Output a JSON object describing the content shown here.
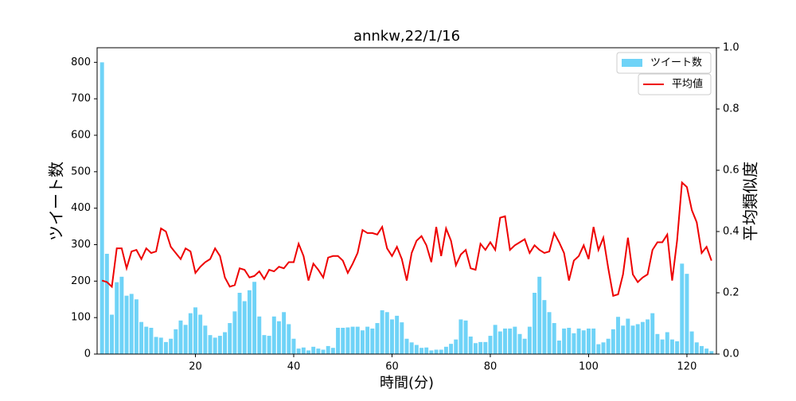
{
  "chart_data": {
    "type": "bar_line",
    "title": "annkw,22/1/16",
    "xlabel": "時間(分)",
    "ylabel": "ツイート数",
    "y2label": "平均類似度",
    "x": [
      1,
      2,
      3,
      4,
      5,
      6,
      7,
      8,
      9,
      10,
      11,
      12,
      13,
      14,
      15,
      16,
      17,
      18,
      19,
      20,
      21,
      22,
      23,
      24,
      25,
      26,
      27,
      28,
      29,
      30,
      31,
      32,
      33,
      34,
      35,
      36,
      37,
      38,
      39,
      40,
      41,
      42,
      43,
      44,
      45,
      46,
      47,
      48,
      49,
      50,
      51,
      52,
      53,
      54,
      55,
      56,
      57,
      58,
      59,
      60,
      61,
      62,
      63,
      64,
      65,
      66,
      67,
      68,
      69,
      70,
      71,
      72,
      73,
      74,
      75,
      76,
      77,
      78,
      79,
      80,
      81,
      82,
      83,
      84,
      85,
      86,
      87,
      88,
      89,
      90,
      91,
      92,
      93,
      94,
      95,
      96,
      97,
      98,
      99,
      100,
      101,
      102,
      103,
      104,
      105,
      106,
      107,
      108,
      109,
      110,
      111,
      112,
      113,
      114,
      115,
      116,
      117,
      118,
      119,
      120,
      121,
      122,
      123,
      124,
      125
    ],
    "series": [
      {
        "name": "ツイート数",
        "kind": "bar",
        "color": "#6fd3f7",
        "values": [
          800,
          275,
          108,
          197,
          212,
          160,
          165,
          150,
          88,
          75,
          72,
          47,
          45,
          33,
          42,
          68,
          92,
          80,
          112,
          128,
          108,
          78,
          52,
          45,
          50,
          60,
          85,
          117,
          168,
          145,
          175,
          198,
          103,
          52,
          50,
          103,
          90,
          115,
          82,
          42,
          15,
          18,
          10,
          20,
          15,
          12,
          22,
          17,
          72,
          72,
          73,
          75,
          75,
          65,
          75,
          70,
          85,
          120,
          115,
          95,
          105,
          87,
          42,
          32,
          25,
          17,
          18,
          10,
          12,
          12,
          20,
          28,
          40,
          95,
          92,
          48,
          30,
          33,
          33,
          50,
          80,
          62,
          70,
          70,
          75,
          55,
          42,
          75,
          168,
          212,
          148,
          115,
          85,
          37,
          70,
          72,
          57,
          70,
          65,
          70,
          70,
          27,
          32,
          42,
          68,
          102,
          78,
          97,
          78,
          82,
          88,
          95,
          112,
          55,
          40,
          60,
          40,
          35,
          248,
          220,
          62,
          32,
          22,
          15,
          8
        ]
      },
      {
        "name": "平均値",
        "kind": "line",
        "axis": "y2",
        "color": "#ee0000",
        "values": [
          0.24,
          0.235,
          0.22,
          0.345,
          0.345,
          0.28,
          0.335,
          0.34,
          0.31,
          0.345,
          0.33,
          0.335,
          0.41,
          0.4,
          0.35,
          0.33,
          0.31,
          0.345,
          0.335,
          0.265,
          0.285,
          0.3,
          0.31,
          0.345,
          0.32,
          0.25,
          0.22,
          0.225,
          0.28,
          0.275,
          0.25,
          0.255,
          0.27,
          0.245,
          0.275,
          0.27,
          0.285,
          0.28,
          0.3,
          0.3,
          0.36,
          0.32,
          0.24,
          0.295,
          0.275,
          0.25,
          0.315,
          0.32,
          0.32,
          0.305,
          0.265,
          0.295,
          0.33,
          0.405,
          0.395,
          0.395,
          0.39,
          0.415,
          0.345,
          0.32,
          0.35,
          0.31,
          0.24,
          0.33,
          0.37,
          0.385,
          0.355,
          0.3,
          0.415,
          0.32,
          0.41,
          0.37,
          0.29,
          0.325,
          0.34,
          0.28,
          0.275,
          0.36,
          0.34,
          0.365,
          0.34,
          0.445,
          0.45,
          0.34,
          0.355,
          0.365,
          0.375,
          0.33,
          0.355,
          0.34,
          0.33,
          0.335,
          0.395,
          0.365,
          0.33,
          0.24,
          0.305,
          0.32,
          0.355,
          0.31,
          0.415,
          0.34,
          0.38,
          0.28,
          0.19,
          0.195,
          0.26,
          0.38,
          0.26,
          0.235,
          0.25,
          0.26,
          0.34,
          0.365,
          0.365,
          0.39,
          0.24,
          0.37,
          0.56,
          0.545,
          0.47,
          0.43,
          0.33,
          0.35,
          0.305
        ]
      }
    ],
    "xlim": [
      0,
      126
    ],
    "xticks": [
      20,
      40,
      60,
      80,
      100,
      120
    ],
    "ylim": [
      0,
      840
    ],
    "yticks": [
      0,
      100,
      200,
      300,
      400,
      500,
      600,
      700,
      800
    ],
    "y2lim": [
      0,
      1
    ],
    "y2ticks": [
      {
        "value": 0,
        "label": "0.0"
      },
      0.2,
      0.4,
      0.6,
      0.8,
      {
        "value": 1,
        "label": "1.0"
      }
    ],
    "legend": "upper right"
  }
}
